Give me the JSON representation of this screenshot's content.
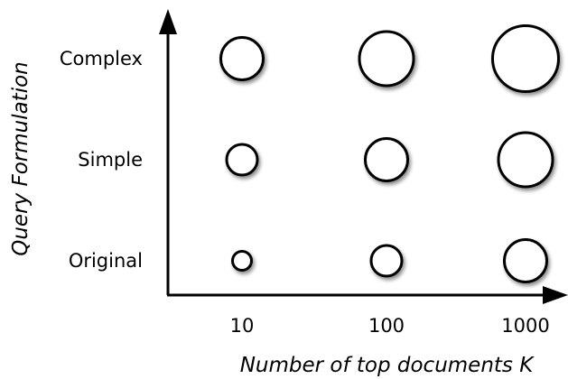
{
  "chart_data": {
    "type": "scatter",
    "title": "",
    "xlabel": "Number of top documents K",
    "ylabel": "Query Formulation",
    "x_categories": [
      "10",
      "100",
      "1000"
    ],
    "y_categories": [
      "Original",
      "Simple",
      "Complex"
    ],
    "series": [
      {
        "points": [
          {
            "x": "10",
            "y": "Original",
            "size": 1
          },
          {
            "x": "100",
            "y": "Original",
            "size": 2
          },
          {
            "x": "1000",
            "y": "Original",
            "size": 3
          },
          {
            "x": "10",
            "y": "Simple",
            "size": 2
          },
          {
            "x": "100",
            "y": "Simple",
            "size": 3
          },
          {
            "x": "1000",
            "y": "Simple",
            "size": 4
          },
          {
            "x": "10",
            "y": "Complex",
            "size": 3
          },
          {
            "x": "100",
            "y": "Complex",
            "size": 4
          },
          {
            "x": "1000",
            "y": "Complex",
            "size": 5
          }
        ]
      }
    ],
    "grid": false,
    "legend": "none",
    "colors": {
      "bubble_fill": "#ffffff",
      "bubble_stroke": "#000000",
      "axis": "#000000"
    }
  }
}
